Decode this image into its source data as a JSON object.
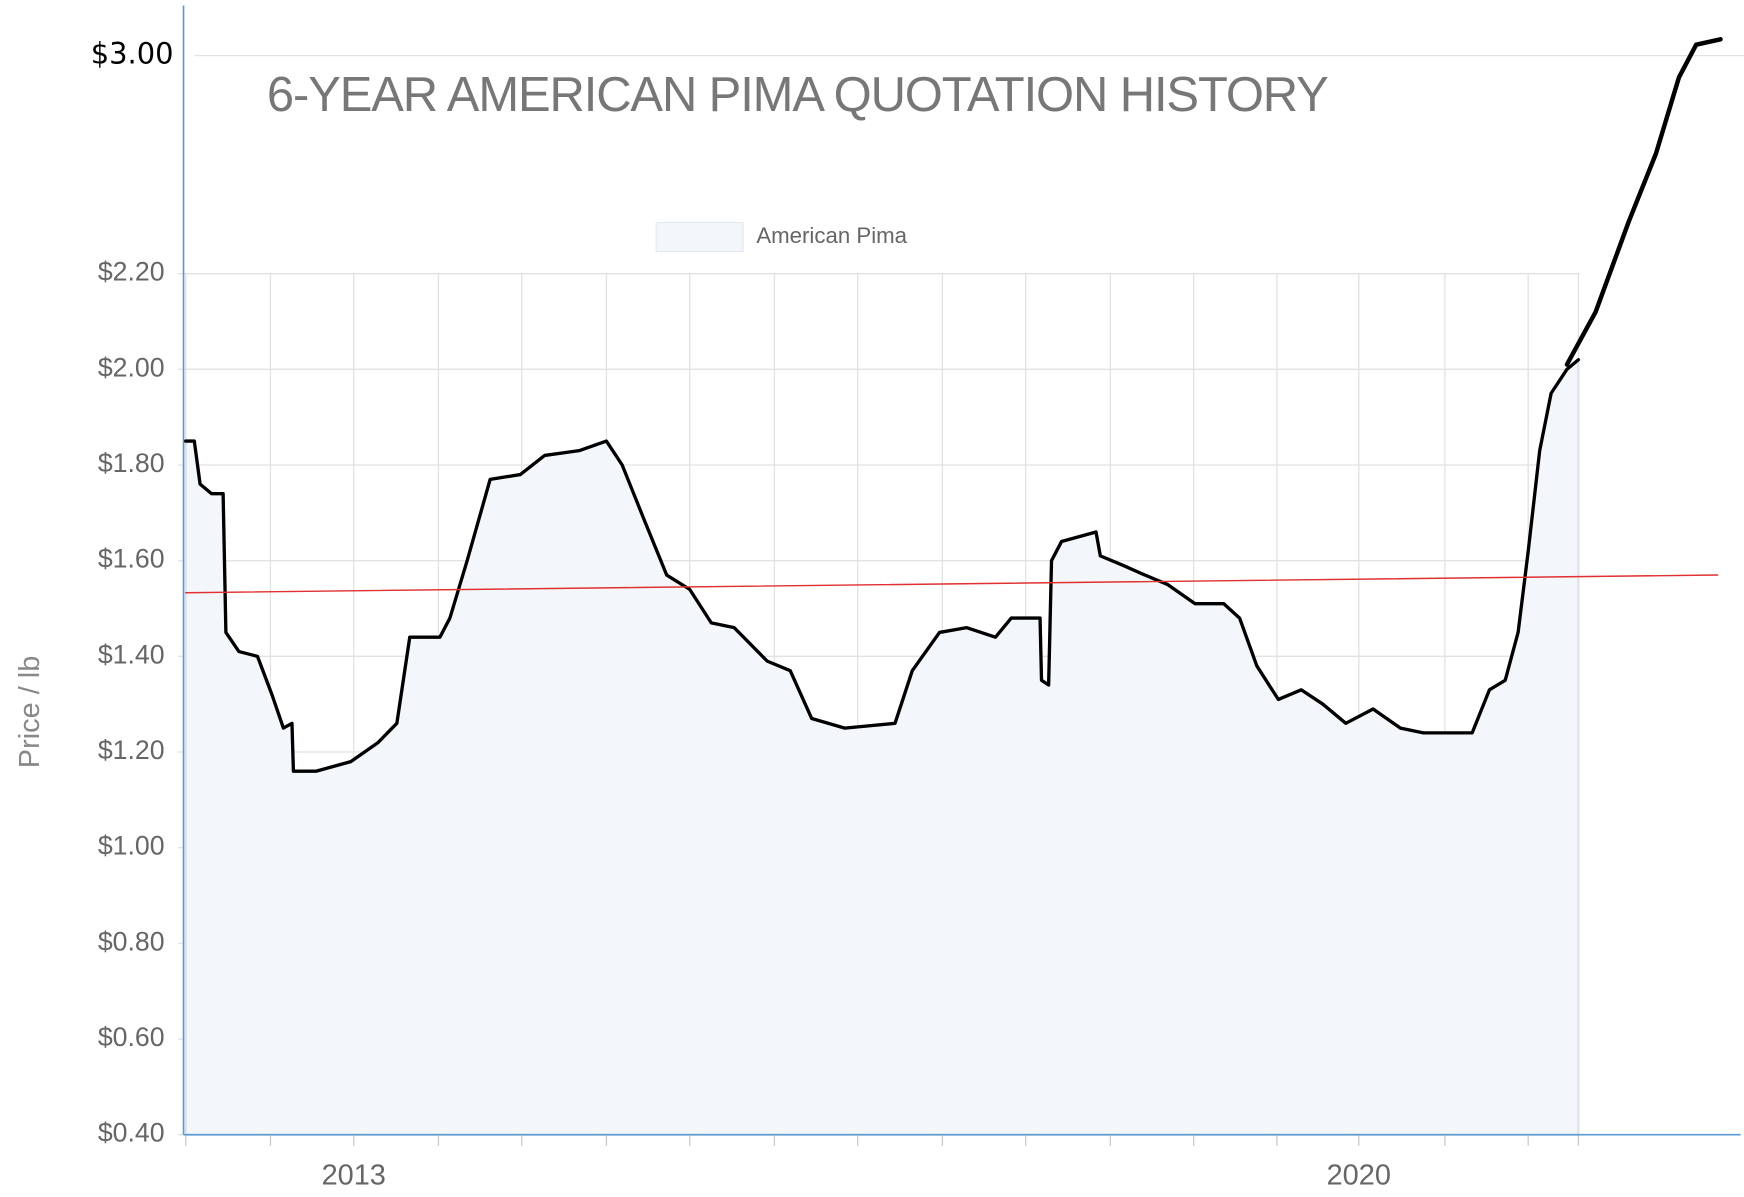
{
  "chart_data": {
    "type": "line",
    "title": "6-YEAR AMERICAN PIMA QUOTATION HISTORY",
    "y_label": "Price / lb",
    "legend": "top",
    "xlim": [
      2011.83,
      2022.66
    ],
    "xticks": [
      2013,
      2020
    ],
    "xgrid": [
      2011.83,
      2012.42,
      2013.0,
      2013.59,
      2014.17,
      2014.76,
      2015.34,
      2015.93,
      2016.51,
      2017.1,
      2017.68,
      2018.27,
      2018.85,
      2019.43,
      2020.0,
      2020.6,
      2021.18,
      2021.53
    ],
    "ylim": [
      0.4,
      3.0
    ],
    "yticks": [
      {
        "value": 0.4,
        "label": "$0.40"
      },
      {
        "value": 0.6,
        "label": "$0.60"
      },
      {
        "value": 0.8,
        "label": "$0.80"
      },
      {
        "value": 1.0,
        "label": "$1.00"
      },
      {
        "value": 1.2,
        "label": "$1.20"
      },
      {
        "value": 1.4,
        "label": "$1.40"
      },
      {
        "value": 1.6,
        "label": "$1.60"
      },
      {
        "value": 1.8,
        "label": "$1.80"
      },
      {
        "value": 2.0,
        "label": "$2.00"
      },
      {
        "value": 2.2,
        "label": "$2.20"
      },
      {
        "value": 3.0,
        "label": "$3.00"
      }
    ],
    "grid": true,
    "series": [
      {
        "name": "American Pima",
        "color": "#000000",
        "fill": "#f3f7fb",
        "x": [
          2011.83,
          2011.89,
          2011.93,
          2012.01,
          2012.09,
          2012.11,
          2012.2,
          2012.33,
          2012.43,
          2012.51,
          2012.57,
          2012.58,
          2012.74,
          2012.98,
          2013.17,
          2013.3,
          2013.39,
          2013.6,
          2013.67,
          2013.79,
          2013.95,
          2014.16,
          2014.33,
          2014.57,
          2014.76,
          2014.87,
          2015.03,
          2015.18,
          2015.34,
          2015.49,
          2015.65,
          2015.88,
          2016.04,
          2016.19,
          2016.42,
          2016.77,
          2016.89,
          2017.08,
          2017.27,
          2017.47,
          2017.58,
          2017.78,
          2017.79,
          2017.84,
          2017.86,
          2017.93,
          2018.17,
          2018.2,
          2018.36,
          2018.51,
          2018.67,
          2018.86,
          2019.06,
          2019.17,
          2019.29,
          2019.44,
          2019.6,
          2019.75,
          2019.91,
          2020.1,
          2020.29,
          2020.45,
          2020.79,
          2020.91,
          2021.02,
          2021.11,
          2021.18,
          2021.26,
          2021.34,
          2021.45,
          2021.53
        ],
        "values": [
          1.85,
          1.85,
          1.76,
          1.74,
          1.74,
          1.45,
          1.41,
          1.4,
          1.32,
          1.25,
          1.26,
          1.16,
          1.16,
          1.18,
          1.22,
          1.26,
          1.44,
          1.44,
          1.48,
          1.6,
          1.77,
          1.78,
          1.82,
          1.83,
          1.85,
          1.8,
          1.68,
          1.57,
          1.54,
          1.47,
          1.46,
          1.39,
          1.37,
          1.27,
          1.25,
          1.26,
          1.37,
          1.45,
          1.46,
          1.44,
          1.48,
          1.48,
          1.35,
          1.34,
          1.6,
          1.64,
          1.66,
          1.61,
          1.59,
          1.57,
          1.55,
          1.51,
          1.51,
          1.48,
          1.38,
          1.31,
          1.33,
          1.3,
          1.26,
          1.29,
          1.25,
          1.24,
          1.24,
          1.33,
          1.35,
          1.45,
          1.62,
          1.83,
          1.95,
          2.0,
          2.02
        ]
      },
      {
        "color": "#000000",
        "x": [
          2021.45,
          2021.65,
          2021.88,
          2022.07,
          2022.23,
          2022.35,
          2022.52
        ],
        "values": [
          2.01,
          2.12,
          2.39,
          2.64,
          2.92,
          3.04,
          3.06
        ]
      },
      {
        "color": "#e03030",
        "x": [
          2011.83,
          2022.5
        ],
        "values": [
          1.533,
          1.57
        ]
      }
    ]
  }
}
